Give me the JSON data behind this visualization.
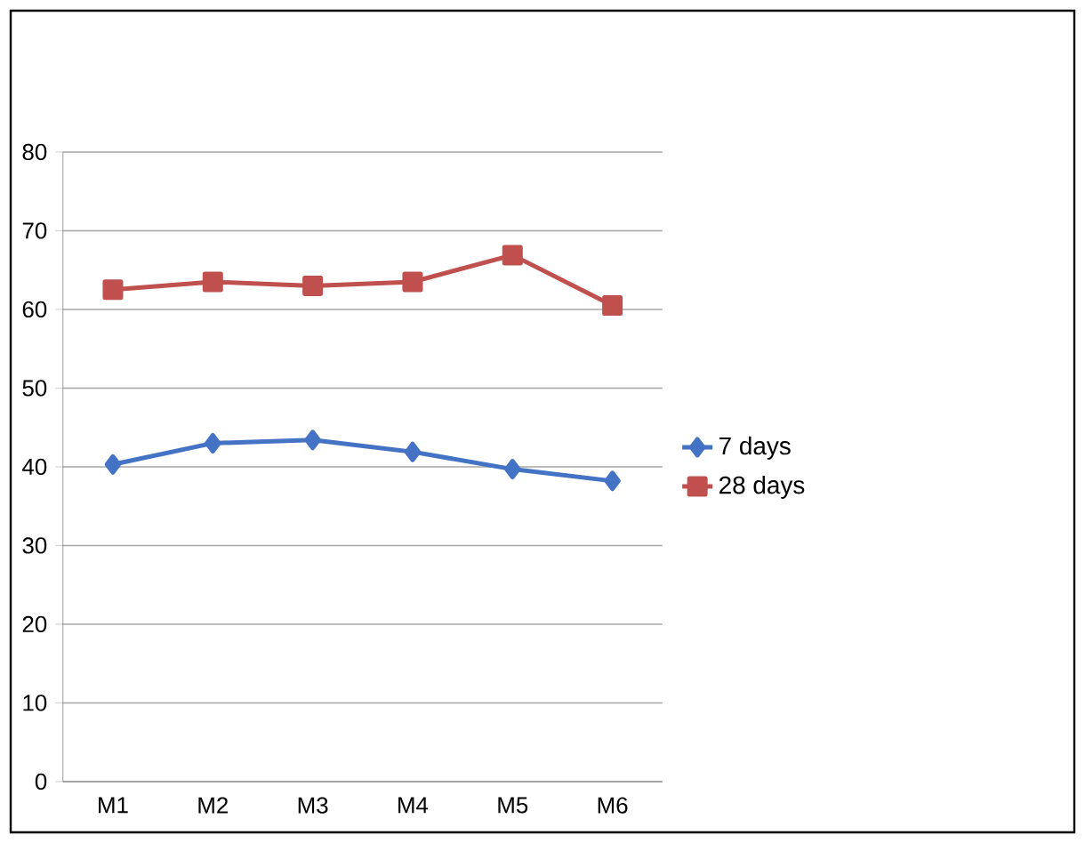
{
  "chart_data": {
    "type": "line",
    "categories": [
      "M1",
      "M2",
      "M3",
      "M4",
      "M5",
      "M6"
    ],
    "series": [
      {
        "name": "7 days",
        "color": "#4472c4",
        "marker": "diamond",
        "values": [
          40.3,
          43,
          43.4,
          41.9,
          39.7,
          38.2
        ]
      },
      {
        "name": "28 days",
        "color": "#c0504d",
        "marker": "square",
        "values": [
          62.5,
          63.5,
          63,
          63.5,
          66.9,
          60.5
        ]
      }
    ],
    "ylim": [
      0,
      80
    ],
    "yticks": [
      0,
      10,
      20,
      30,
      40,
      50,
      60,
      70,
      80
    ],
    "grid": "y",
    "legend": "right",
    "line_style": "solid"
  }
}
